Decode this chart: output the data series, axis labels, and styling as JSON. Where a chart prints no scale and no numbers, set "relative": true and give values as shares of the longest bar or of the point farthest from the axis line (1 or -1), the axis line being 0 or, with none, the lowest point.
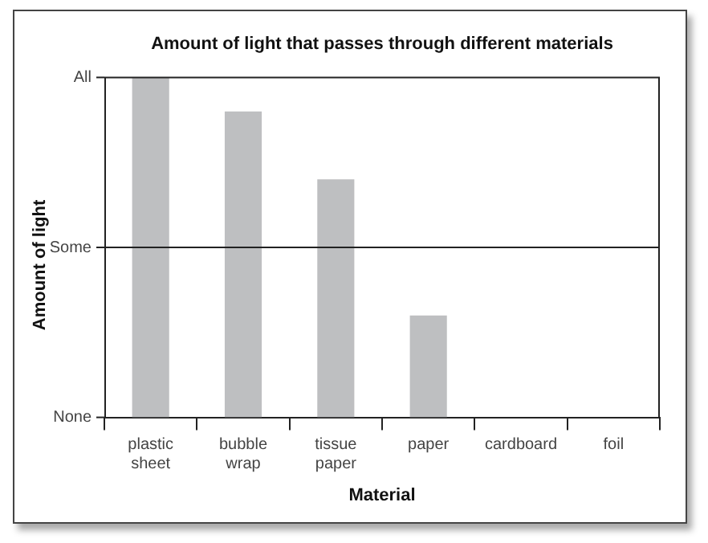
{
  "chart_data": {
    "type": "bar",
    "title": "Amount of light that passes through different materials",
    "xlabel": "Material",
    "ylabel": "Amount of light",
    "categories": [
      "plastic sheet",
      "bubble wrap",
      "tissue paper",
      "paper",
      "cardboard",
      "foil"
    ],
    "values": [
      1,
      0.9,
      0.7,
      0.3,
      0,
      0
    ],
    "color": "#bebfc1",
    "relative": true,
    "annotations": [
      "None"
    ],
    "ref_lines": [
      {
        "axis": "y",
        "value": 0.5,
        "label": "Some"
      },
      {
        "axis": "y",
        "value": 1,
        "label": "All"
      }
    ]
  }
}
